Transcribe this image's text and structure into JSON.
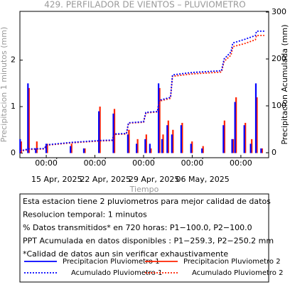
{
  "chart_data": {
    "type": "combo",
    "title": "429. PERFILADOR DE VIENTOS – PLUVIOMETRO",
    "x_label": "Tiempo",
    "y_label": "Precipitacion 1 minutos (mm)",
    "y2_label": "Precipitacion Acumulada (mm)",
    "xlim": [
      "2025-04-10T05:00",
      "2025-05-16T00:00"
    ],
    "xticks": [
      {
        "value": "2025-04-14T00:00",
        "label": "00:00"
      },
      {
        "value": "2025-04-21T00:00",
        "label": "00:00"
      },
      {
        "value": "2025-04-28T00:00",
        "label": "00:00"
      },
      {
        "value": "2025-05-05T00:00",
        "label": "00:00"
      },
      {
        "value": "2025-05-12T00:00",
        "label": "00:00"
      }
    ],
    "xticks_dates": [
      {
        "value": "2025-04-15T12:00",
        "label": "15 Apr, 2025"
      },
      {
        "value": "2025-04-22T12:00",
        "label": "22 Apr, 2025"
      },
      {
        "value": "2025-04-29T12:00",
        "label": "29 Apr, 2025"
      },
      {
        "value": "2025-05-06T12:00",
        "label": "06 May, 2025"
      }
    ],
    "ylim": [
      -0.1,
      3.05
    ],
    "yticks": [
      0,
      1,
      2
    ],
    "y2lim": [
      -10.6,
      301.5
    ],
    "y2ticks": [
      0,
      100,
      200,
      300
    ],
    "series": [
      {
        "name": "Precipitacion Pluviometro 1",
        "type": "bar",
        "color": "#0000ff",
        "linestyle": "solid",
        "x": [
          "2025-04-10T08:00",
          "2025-04-11T11:00",
          "2025-04-12T14:00",
          "2025-04-14T02:00",
          "2025-04-17T14:00",
          "2025-04-19T12:00",
          "2025-04-21T16:00",
          "2025-04-23T18:00",
          "2025-04-25T20:00",
          "2025-04-27T02:00",
          "2025-04-28T08:00",
          "2025-04-29T00:00",
          "2025-04-30T06:00",
          "2025-04-30T18:00",
          "2025-05-01T12:00",
          "2025-05-02T04:00",
          "2025-05-03T12:00",
          "2025-05-04T22:00",
          "2025-05-06T12:00",
          "2025-05-09T14:00",
          "2025-05-10T20:00",
          "2025-05-11T06:00",
          "2025-05-12T14:00",
          "2025-05-13T12:00",
          "2025-05-14T06:00",
          "2025-05-15T00:00"
        ],
        "values": [
          0.3,
          1.5,
          0.1,
          0.2,
          0.15,
          0.1,
          0.9,
          0.85,
          0.4,
          0.2,
          0.3,
          0.2,
          1.5,
          0.3,
          0.6,
          0.4,
          0.6,
          0.2,
          0.1,
          0.6,
          0.3,
          1.1,
          0.6,
          0.2,
          1.5,
          0.1
        ]
      },
      {
        "name": "Precipitacion Pluviometro 2",
        "type": "bar",
        "color": "#ff2200",
        "linestyle": "solid",
        "x": [
          "2025-04-10T08:00",
          "2025-04-11T11:00",
          "2025-04-12T14:00",
          "2025-04-14T02:00",
          "2025-04-17T14:00",
          "2025-04-19T12:00",
          "2025-04-21T16:00",
          "2025-04-23T18:00",
          "2025-04-25T20:00",
          "2025-04-27T02:00",
          "2025-04-28T08:00",
          "2025-04-29T00:00",
          "2025-04-30T06:00",
          "2025-04-30T18:00",
          "2025-05-01T12:00",
          "2025-05-02T04:00",
          "2025-05-03T12:00",
          "2025-05-04T22:00",
          "2025-05-06T12:00",
          "2025-05-09T14:00",
          "2025-05-10T20:00",
          "2025-05-11T06:00",
          "2025-05-12T14:00",
          "2025-05-13T12:00",
          "2025-05-14T06:00",
          "2025-05-15T00:00"
        ],
        "values": [
          0.25,
          1.4,
          0.25,
          0.2,
          0.2,
          0.1,
          1.0,
          0.95,
          0.5,
          0.3,
          0.4,
          0.1,
          1.4,
          0.4,
          0.7,
          0.5,
          0.65,
          0.25,
          0.15,
          0.7,
          0.3,
          1.2,
          0.65,
          0.3,
          1.2,
          0.1
        ]
      },
      {
        "name": "Acumulado Pluviometro 1",
        "type": "line",
        "axis": "y2",
        "color": "#0000ff",
        "linestyle": "dotted",
        "x": [
          "2025-04-10T05:00",
          "2025-04-11T11:00",
          "2025-04-13T17:00",
          "2025-04-14T02:00",
          "2025-04-17T14:00",
          "2025-04-21T16:00",
          "2025-04-23T12:00",
          "2025-04-23T18:00",
          "2025-04-25T13:00",
          "2025-04-25T20:00",
          "2025-04-28T00:00",
          "2025-04-28T08:00",
          "2025-04-30T00:00",
          "2025-04-30T06:00",
          "2025-05-01T21:00",
          "2025-05-02T04:00",
          "2025-05-04T22:00",
          "2025-05-09T05:00",
          "2025-05-09T14:00",
          "2025-05-10T14:00",
          "2025-05-10T20:00",
          "2025-05-12T14:00",
          "2025-05-14T02:00",
          "2025-05-14T06:00",
          "2025-05-15T09:00"
        ],
        "values": [
          4,
          8,
          9,
          17,
          22,
          26,
          27,
          40,
          41,
          64,
          66,
          86,
          88,
          112,
          118,
          166,
          171,
          175,
          200,
          215,
          234,
          242,
          250,
          259.3,
          259.3
        ]
      },
      {
        "name": "Acumulado Pluviometro 2",
        "type": "line",
        "axis": "y2",
        "color": "#ff2200",
        "linestyle": "dotted",
        "x": [
          "2025-04-10T05:00",
          "2025-04-11T11:00",
          "2025-04-13T17:00",
          "2025-04-14T02:00",
          "2025-04-17T14:00",
          "2025-04-21T16:00",
          "2025-04-23T12:00",
          "2025-04-23T18:00",
          "2025-04-25T13:00",
          "2025-04-25T20:00",
          "2025-04-28T00:00",
          "2025-04-28T08:00",
          "2025-04-30T00:00",
          "2025-04-30T06:00",
          "2025-05-01T21:00",
          "2025-05-02T04:00",
          "2025-05-04T22:00",
          "2025-05-09T05:00",
          "2025-05-09T14:00",
          "2025-05-10T14:00",
          "2025-05-10T20:00",
          "2025-05-12T14:00",
          "2025-05-14T02:00",
          "2025-05-14T06:00",
          "2025-05-15T09:00"
        ],
        "values": [
          3,
          7,
          8,
          16,
          21,
          25,
          26,
          39,
          40,
          63,
          65,
          85,
          87,
          110,
          116,
          163,
          168,
          172,
          195,
          208,
          226,
          233,
          241,
          250.2,
          250.2
        ]
      }
    ],
    "notes": [
      "Esta estacion tiene 2 pluviometros para mejor calidad de datos",
      "Resolucion temporal: 1 minutos",
      "% Datos transmitidos* en 720 horas: P1−100.0, P2−100.0",
      "PPT Acumulada en datos disponibles : P1−259.3, P2−250.2 mm",
      "*Calidad de datos aun sin verificar exhaustivamente"
    ]
  }
}
